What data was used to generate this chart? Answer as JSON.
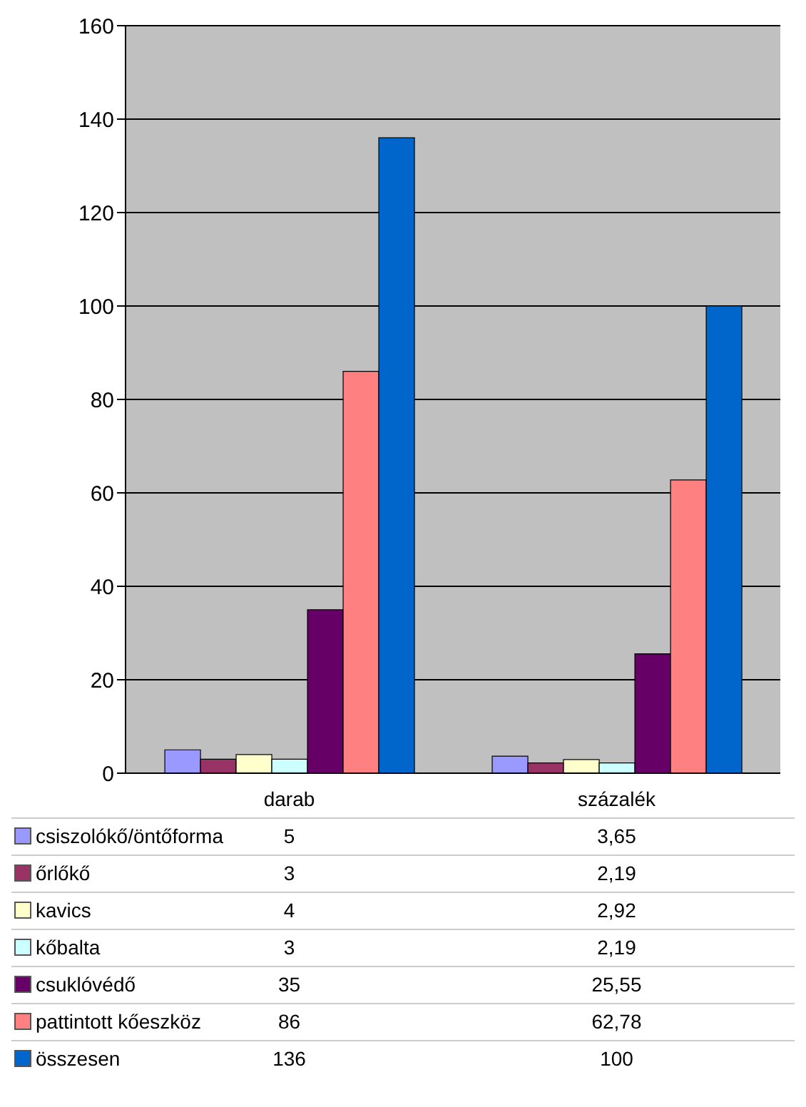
{
  "chart_data": {
    "type": "bar",
    "categories": [
      "darab",
      "százalék"
    ],
    "series": [
      {
        "name": "csiszolókő/öntőforma",
        "color": "#9999ff",
        "values": [
          5,
          3.65
        ],
        "value_labels": [
          "5",
          "3,65"
        ]
      },
      {
        "name": "őrlőkő",
        "color": "#993366",
        "values": [
          3,
          2.19
        ],
        "value_labels": [
          "3",
          "2,19"
        ]
      },
      {
        "name": "kavics",
        "color": "#ffffcc",
        "values": [
          4,
          2.92
        ],
        "value_labels": [
          "4",
          "2,92"
        ]
      },
      {
        "name": "kőbalta",
        "color": "#ccffff",
        "values": [
          3,
          2.19
        ],
        "value_labels": [
          "3",
          "2,19"
        ]
      },
      {
        "name": "csuklóvédő",
        "color": "#660066",
        "values": [
          35,
          25.55
        ],
        "value_labels": [
          "35",
          "25,55"
        ]
      },
      {
        "name": "pattintott kőeszköz",
        "color": "#ff8080",
        "values": [
          86,
          62.78
        ],
        "value_labels": [
          "86",
          "62,78"
        ]
      },
      {
        "name": "összesen",
        "color": "#0066cc",
        "values": [
          136,
          100
        ],
        "value_labels": [
          "136",
          "100"
        ]
      }
    ],
    "ylim": [
      0,
      160
    ],
    "yticks": [
      0,
      20,
      40,
      60,
      80,
      100,
      120,
      140,
      160
    ],
    "grid": "y",
    "legend": "bottom"
  }
}
